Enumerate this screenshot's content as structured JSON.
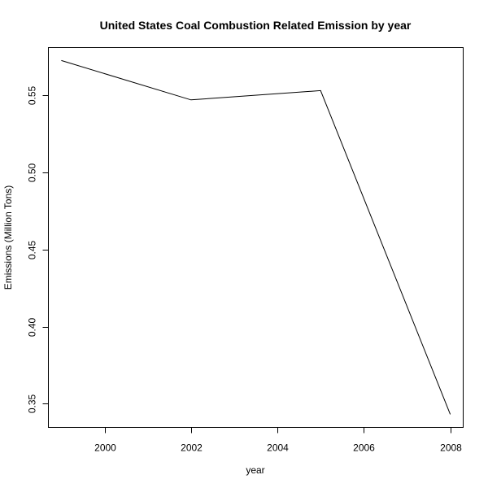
{
  "chart_data": {
    "type": "line",
    "title": "United States Coal Combustion Related Emission by year",
    "xlabel": "year",
    "ylabel": "Emissions (Million Tons)",
    "x": [
      1999,
      2002,
      2005,
      2008
    ],
    "series": [
      {
        "values": [
          0.5724,
          0.5469,
          0.5529,
          0.3432
        ]
      }
    ],
    "xlim": [
      1998.7,
      2008.3
    ],
    "ylim": [
      0.3347,
      0.5808
    ],
    "xticks": [
      2000,
      2002,
      2004,
      2006,
      2008
    ],
    "yticks": [
      0.35,
      0.4,
      0.45,
      0.5,
      0.55
    ],
    "xtick_labels": [
      "2000",
      "2002",
      "2004",
      "2006",
      "2008"
    ],
    "ytick_labels": [
      "0.35",
      "0.40",
      "0.45",
      "0.50",
      "0.55"
    ],
    "grid": false,
    "line_color": "#000000"
  }
}
